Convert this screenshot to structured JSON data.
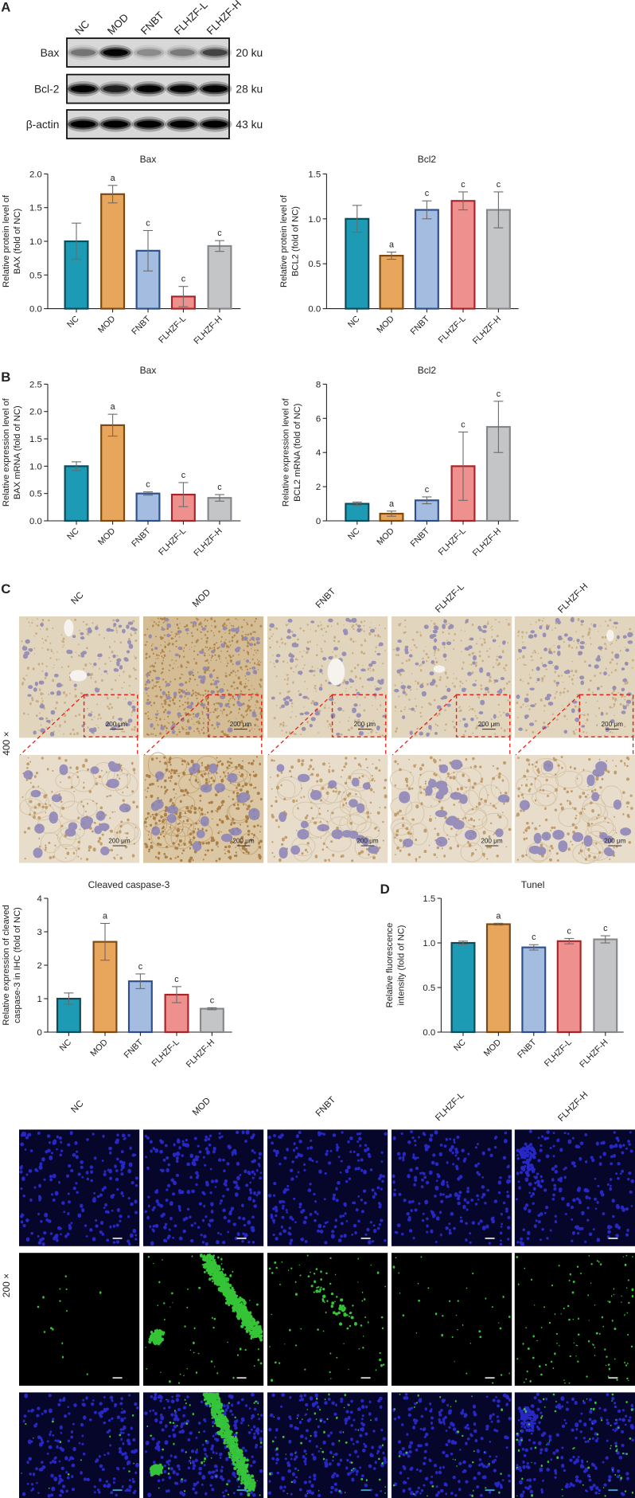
{
  "panel_labels": {
    "a": "A",
    "b": "B",
    "c": "C",
    "d": "D"
  },
  "group_colors": [
    {
      "fill": "#1d9ab4",
      "stroke": "#0b4a59"
    },
    {
      "fill": "#e8a55c",
      "stroke": "#7a4914"
    },
    {
      "fill": "#a3bce0",
      "stroke": "#2d4f8b"
    },
    {
      "fill": "#ee918e",
      "stroke": "#a82429"
    },
    {
      "fill": "#c4c5c7",
      "stroke": "#85878a"
    }
  ],
  "western_blot": {
    "lanes": [
      "NC",
      "MOD",
      "FNBT",
      "FLHZF-L",
      "FLHZF-H"
    ],
    "rows": [
      {
        "protein": "Bax",
        "size": "20 ku"
      },
      {
        "protein": "Bcl-2",
        "size": "28 ku"
      },
      {
        "protein": "β-actin",
        "size": "43 ku"
      }
    ]
  },
  "ihc": {
    "columns": [
      "NC",
      "MOD",
      "FNBT",
      "FLHZF-L",
      "FLHZF-H"
    ],
    "magnification": "400 ×",
    "scale_label": "200 μm"
  },
  "tunel_images": {
    "columns": [
      "NC",
      "MOD",
      "FNBT",
      "FLHZF-L",
      "FLHZF-H"
    ],
    "magnification": "200 ×"
  },
  "chart_data": [
    {
      "type": "bar",
      "title": "Bax",
      "ylabel": [
        "Relative protein level of",
        "BAX (fold of NC)"
      ],
      "categories": [
        "NC",
        "MOD",
        "FNBT",
        "FLHZF-L",
        "FLHZF-H"
      ],
      "values": [
        1.0,
        1.7,
        0.86,
        0.18,
        0.93
      ],
      "errors": [
        0.27,
        0.13,
        0.3,
        0.15,
        0.08
      ],
      "significance": [
        "",
        "a",
        "c",
        "c",
        "c"
      ],
      "ylim": [
        0,
        2
      ],
      "yticks": [
        "0.0",
        "0.5",
        "1.0",
        "1.5",
        "2.0"
      ]
    },
    {
      "type": "bar",
      "title": "Bcl2",
      "ylabel": [
        "Relative protein level of",
        "BCL2 (fold of NC)"
      ],
      "categories": [
        "NC",
        "MOD",
        "FNBT",
        "FLHZF-L",
        "FLHZF-H"
      ],
      "values": [
        1.0,
        0.59,
        1.1,
        1.2,
        1.1
      ],
      "errors": [
        0.15,
        0.04,
        0.1,
        0.1,
        0.2
      ],
      "significance": [
        "",
        "a",
        "c",
        "c",
        "c"
      ],
      "ylim": [
        0,
        1.5
      ],
      "yticks": [
        "0.0",
        "0.5",
        "1.0",
        "1.5"
      ]
    },
    {
      "type": "bar",
      "title": "Bax",
      "ylabel": [
        "Relative expression level of",
        "BAX mRNA (fold of NC)"
      ],
      "categories": [
        "NC",
        "MOD",
        "FNBT",
        "FLHZF-L",
        "FLHZF-H"
      ],
      "values": [
        1.0,
        1.75,
        0.5,
        0.48,
        0.42
      ],
      "errors": [
        0.08,
        0.2,
        0.03,
        0.22,
        0.06
      ],
      "significance": [
        "",
        "a",
        "c",
        "c",
        "c"
      ],
      "ylim": [
        0,
        2.5
      ],
      "yticks": [
        "0.0",
        "0.5",
        "1.0",
        "1.5",
        "2.0",
        "2.5"
      ]
    },
    {
      "type": "bar",
      "title": "Bcl2",
      "ylabel": [
        "Relative expression level of",
        "BCL2 mRNA (fold of NC)"
      ],
      "categories": [
        "NC",
        "MOD",
        "FNBT",
        "FLHZF-L",
        "FLHZF-H"
      ],
      "values": [
        1.0,
        0.42,
        1.2,
        3.2,
        5.5
      ],
      "errors": [
        0.1,
        0.15,
        0.2,
        2.0,
        1.5
      ],
      "significance": [
        "",
        "a",
        "c",
        "c",
        "c"
      ],
      "ylim": [
        0,
        8
      ],
      "yticks": [
        "0",
        "2",
        "4",
        "6",
        "8"
      ]
    },
    {
      "type": "bar",
      "title": "Cleaved caspase-3",
      "ylabel": [
        "Relative expression of cleaved",
        "caspase-3 in IHC (fold of NC)"
      ],
      "categories": [
        "NC",
        "MOD",
        "FNBT",
        "FLHZF-L",
        "FLHZF-H"
      ],
      "values": [
        1.0,
        2.7,
        1.52,
        1.12,
        0.7
      ],
      "errors": [
        0.17,
        0.55,
        0.22,
        0.24,
        0.03
      ],
      "significance": [
        "",
        "a",
        "c",
        "c",
        "c"
      ],
      "ylim": [
        0,
        4
      ],
      "yticks": [
        "0",
        "1",
        "2",
        "3",
        "4"
      ]
    },
    {
      "type": "bar",
      "title": "Tunel",
      "ylabel": [
        "Relative fluorescence",
        "intensity (fold of NC)"
      ],
      "categories": [
        "NC",
        "MOD",
        "FNBT",
        "FLHZF-L",
        "FLHZF-H"
      ],
      "values": [
        1.0,
        1.21,
        0.95,
        1.02,
        1.04
      ],
      "errors": [
        0.02,
        0.01,
        0.03,
        0.03,
        0.04
      ],
      "significance": [
        "",
        "a",
        "c",
        "c",
        "c"
      ],
      "ylim": [
        0,
        1.5
      ],
      "yticks": [
        "0.0",
        "0.5",
        "1.0",
        "1.5"
      ]
    }
  ]
}
